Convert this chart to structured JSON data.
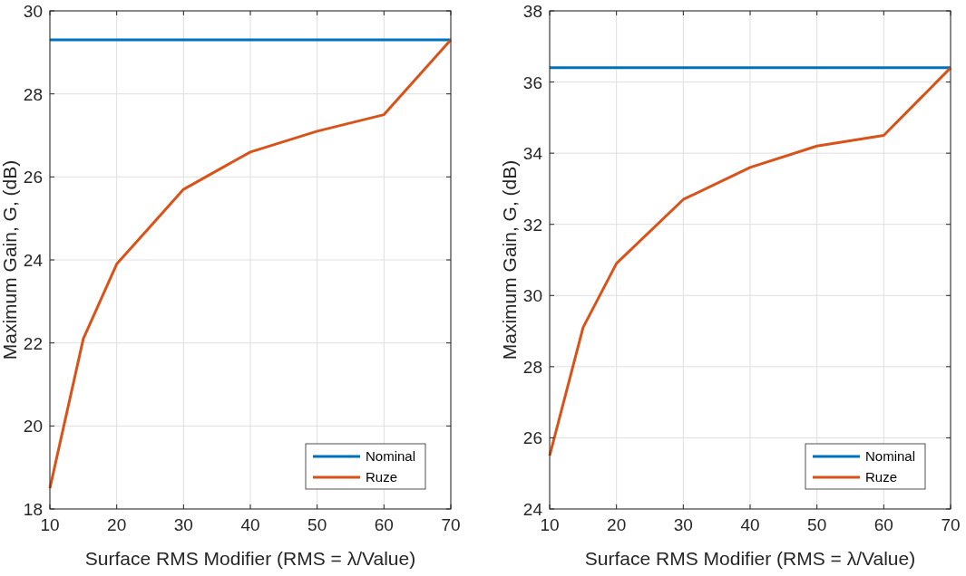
{
  "chart_data": [
    {
      "type": "line",
      "xlabel": "Surface RMS Modifier (RMS = λ/Value)",
      "ylabel": "Maximum Gain, G, (dB)",
      "xlim": [
        10,
        70
      ],
      "xticks": [
        10,
        20,
        30,
        40,
        50,
        60,
        70
      ],
      "ylim": [
        18,
        30
      ],
      "yticks": [
        18,
        20,
        22,
        24,
        26,
        28,
        30
      ],
      "grid": true,
      "legend": "bottom right",
      "line_style": "solid",
      "marker": "none",
      "series": [
        {
          "name": "Nominal",
          "color": "#0072bd",
          "x": [
            10,
            70
          ],
          "values": [
            29.3,
            29.3
          ]
        },
        {
          "name": "Ruze",
          "color": "#d95319",
          "x": [
            10,
            15,
            20,
            30,
            40,
            50,
            60,
            70
          ],
          "values": [
            18.5,
            22.1,
            23.9,
            25.7,
            26.6,
            27.1,
            27.5,
            29.3
          ]
        }
      ]
    },
    {
      "type": "line",
      "xlabel": "Surface RMS Modifier (RMS = λ/Value)",
      "ylabel": "Maximum Gain, G, (dB)",
      "xlim": [
        10,
        70
      ],
      "xticks": [
        10,
        20,
        30,
        40,
        50,
        60,
        70
      ],
      "ylim": [
        24,
        38
      ],
      "yticks": [
        24,
        26,
        28,
        30,
        32,
        34,
        36,
        38
      ],
      "grid": true,
      "legend": "bottom right",
      "line_style": "solid",
      "marker": "none",
      "series": [
        {
          "name": "Nominal",
          "color": "#0072bd",
          "x": [
            10,
            70
          ],
          "values": [
            36.4,
            36.4
          ]
        },
        {
          "name": "Ruze",
          "color": "#d95319",
          "x": [
            10,
            15,
            20,
            30,
            40,
            50,
            60,
            70
          ],
          "values": [
            25.5,
            29.1,
            30.9,
            32.7,
            33.6,
            34.2,
            34.5,
            36.4
          ]
        }
      ]
    }
  ]
}
